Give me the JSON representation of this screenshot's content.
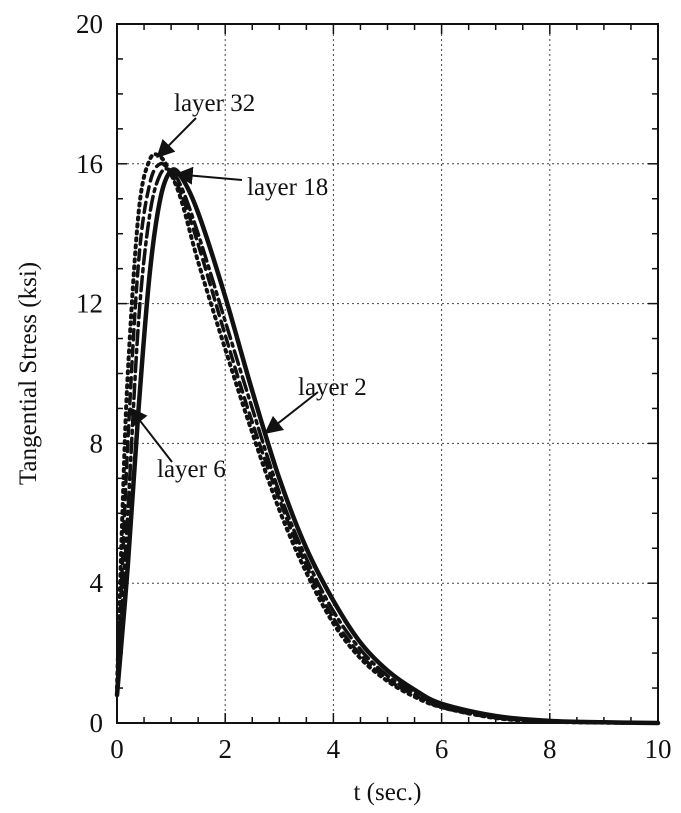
{
  "chart_data": {
    "type": "line",
    "title": "",
    "xlabel": "t (sec.)",
    "ylabel": "Tangential Stress (ksi)",
    "xlim": [
      0,
      10
    ],
    "ylim": [
      0,
      20
    ],
    "x_ticks": [
      0,
      2,
      4,
      6,
      8,
      10
    ],
    "y_ticks": [
      0,
      4,
      8,
      12,
      16,
      20
    ],
    "x_tick_labels": [
      "0",
      "2",
      "4",
      "6",
      "8",
      "10"
    ],
    "y_tick_labels": [
      "0",
      "4",
      "8",
      "12",
      "16",
      "20"
    ],
    "grid": true,
    "legend": "none",
    "series": [
      {
        "name": "layer 2",
        "style": "solid",
        "x": [
          0,
          0.2,
          0.4,
          0.6,
          0.8,
          1.0,
          1.2,
          1.5,
          2.0,
          2.5,
          3.0,
          3.5,
          4.0,
          4.5,
          5.0,
          5.5,
          6.0,
          7.0,
          8.0,
          9.0,
          10.0
        ],
        "y": [
          0.8,
          4.5,
          9.0,
          12.8,
          15.0,
          15.8,
          15.6,
          14.6,
          12.2,
          9.5,
          7.0,
          5.0,
          3.5,
          2.3,
          1.5,
          0.95,
          0.55,
          0.2,
          0.06,
          0.02,
          0
        ]
      },
      {
        "name": "layer 6",
        "style": "dash-dot",
        "x": [
          0,
          0.2,
          0.4,
          0.6,
          0.8,
          1.0,
          1.2,
          1.5,
          2.0,
          2.5,
          3.0,
          3.5,
          4.0,
          4.5,
          5.0,
          5.5,
          6.0,
          7.0,
          8.0,
          9.0,
          10.0
        ],
        "y": [
          0.8,
          6.0,
          11.5,
          14.5,
          15.7,
          15.8,
          15.3,
          14.0,
          11.5,
          9.0,
          6.6,
          4.7,
          3.2,
          2.1,
          1.35,
          0.85,
          0.5,
          0.18,
          0.05,
          0.01,
          0
        ]
      },
      {
        "name": "layer 18",
        "style": "dashed",
        "x": [
          0,
          0.2,
          0.4,
          0.6,
          0.8,
          1.0,
          1.2,
          1.5,
          2.0,
          2.5,
          3.0,
          3.5,
          4.0,
          4.5,
          5.0,
          5.5,
          6.0,
          7.0,
          8.0,
          9.0,
          10.0
        ],
        "y": [
          0.9,
          8.0,
          13.2,
          15.4,
          16.0,
          15.7,
          15.1,
          13.7,
          11.1,
          8.6,
          6.4,
          4.5,
          3.0,
          1.95,
          1.25,
          0.8,
          0.45,
          0.15,
          0.04,
          0.01,
          0
        ]
      },
      {
        "name": "layer 32",
        "style": "dotted",
        "x": [
          0,
          0.1,
          0.2,
          0.4,
          0.6,
          0.8,
          1.0,
          1.2,
          1.5,
          2.0,
          2.5,
          3.0,
          3.5,
          4.0,
          4.5,
          5.0,
          5.5,
          6.0,
          7.0,
          8.0,
          9.0,
          10.0
        ],
        "y": [
          1.0,
          6.0,
          10.0,
          14.6,
          16.1,
          16.2,
          15.7,
          14.9,
          13.2,
          10.7,
          8.3,
          6.1,
          4.3,
          2.85,
          1.85,
          1.2,
          0.75,
          0.45,
          0.14,
          0.04,
          0.01,
          0
        ]
      }
    ],
    "annotations": [
      {
        "text": "layer 32",
        "target_x": 0.75,
        "target_y": 16.2
      },
      {
        "text": "layer 18",
        "target_x": 1.1,
        "target_y": 15.7
      },
      {
        "text": "layer 2",
        "target_x": 2.75,
        "target_y": 8.3
      },
      {
        "text": "layer 6",
        "target_x": 0.25,
        "target_y": 9.0
      }
    ]
  }
}
